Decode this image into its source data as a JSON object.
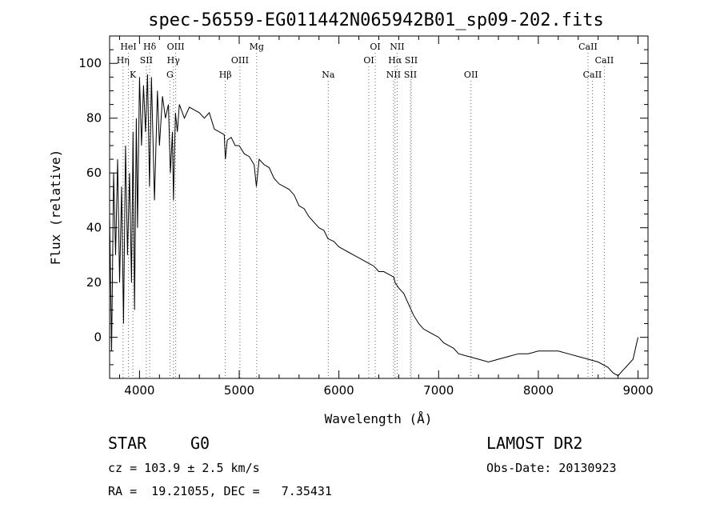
{
  "chart_data": {
    "type": "line",
    "title": "spec-56559-EG011442N065942B01_sp09-202.fits",
    "xlabel": "Wavelength (Å)",
    "ylabel": "Flux (relative)",
    "xlim": [
      3700,
      9100
    ],
    "ylim": [
      -15,
      110
    ],
    "xticks": [
      4000,
      5000,
      6000,
      7000,
      8000,
      9000
    ],
    "yticks": [
      0,
      20,
      40,
      60,
      80,
      100
    ],
    "grid": false,
    "series": [
      {
        "x": [
          3700,
          3720,
          3740,
          3760,
          3780,
          3800,
          3820,
          3840,
          3860,
          3880,
          3900,
          3920,
          3935,
          3950,
          3968,
          3980,
          4000,
          4020,
          4040,
          4060,
          4080,
          4100,
          4120,
          4150,
          4180,
          4200,
          4230,
          4260,
          4290,
          4310,
          4330,
          4340,
          4360,
          4380,
          4400,
          4450,
          4500,
          4550,
          4600,
          4650,
          4700,
          4750,
          4800,
          4850,
          4861,
          4880,
          4920,
          4960,
          5000,
          5050,
          5100,
          5150,
          5172,
          5200,
          5250,
          5300,
          5350,
          5400,
          5450,
          5500,
          5550,
          5600,
          5650,
          5700,
          5750,
          5800,
          5850,
          5890,
          5950,
          6000,
          6050,
          6100,
          6150,
          6200,
          6250,
          6300,
          6350,
          6400,
          6450,
          6500,
          6550,
          6563,
          6600,
          6650,
          6700,
          6750,
          6800,
          6850,
          6900,
          6950,
          7000,
          7050,
          7100,
          7150,
          7200,
          7300,
          7400,
          7500,
          7600,
          7700,
          7800,
          7900,
          8000,
          8100,
          8200,
          8300,
          8400,
          8500,
          8600,
          8700,
          8750,
          8800,
          8850,
          8900,
          8950,
          9000
        ],
        "values": [
          45,
          -5,
          60,
          30,
          65,
          20,
          55,
          5,
          70,
          30,
          60,
          20,
          75,
          10,
          80,
          40,
          95,
          70,
          92,
          75,
          96,
          55,
          95,
          50,
          90,
          70,
          88,
          80,
          85,
          60,
          75,
          50,
          82,
          75,
          85,
          80,
          84,
          83,
          82,
          80,
          82,
          76,
          75,
          74,
          65,
          72,
          73,
          70,
          70,
          67,
          66,
          63,
          55,
          65,
          63,
          62,
          58,
          56,
          55,
          54,
          52,
          48,
          47,
          44,
          42,
          40,
          39,
          36,
          35,
          33,
          32,
          31,
          30,
          29,
          28,
          27,
          26,
          24,
          24,
          23,
          22,
          20,
          18,
          16,
          12,
          8,
          5,
          3,
          2,
          1,
          0,
          -2,
          -3,
          -4,
          -6,
          -7,
          -8,
          -9,
          -8,
          -7,
          -6,
          -6,
          -5,
          -5,
          -5,
          -6,
          -7,
          -8,
          -9,
          -11,
          -13,
          -14,
          -12,
          -10,
          -8,
          0
        ]
      }
    ],
    "lines": [
      {
        "label": "HeI",
        "wl": 3889,
        "row": 0
      },
      {
        "label": "Hη",
        "wl": 3835,
        "row": 1
      },
      {
        "label": "K",
        "wl": 3934,
        "row": 2
      },
      {
        "label": "Hδ",
        "wl": 4102,
        "row": 0
      },
      {
        "label": "SII",
        "wl": 4068,
        "row": 1
      },
      {
        "label": "OIII",
        "wl": 4363,
        "row": 0
      },
      {
        "label": "Hγ",
        "wl": 4340,
        "row": 1
      },
      {
        "label": "G",
        "wl": 4305,
        "row": 2
      },
      {
        "label": "Hβ",
        "wl": 4861,
        "row": 2
      },
      {
        "label": "OIII",
        "wl": 5007,
        "row": 1
      },
      {
        "label": "Mg",
        "wl": 5175,
        "row": 0
      },
      {
        "label": "Na",
        "wl": 5893,
        "row": 2
      },
      {
        "label": "OI",
        "wl": 6364,
        "row": 0
      },
      {
        "label": "OI",
        "wl": 6300,
        "row": 1
      },
      {
        "label": "NII",
        "wl": 6584,
        "row": 0
      },
      {
        "label": "Hα",
        "wl": 6563,
        "row": 1
      },
      {
        "label": "SII",
        "wl": 6725,
        "row": 1
      },
      {
        "label": "NII",
        "wl": 6548,
        "row": 2
      },
      {
        "label": "SII",
        "wl": 6717,
        "row": 2
      },
      {
        "label": "OII",
        "wl": 7325,
        "row": 2
      },
      {
        "label": "CaII",
        "wl": 8498,
        "row": 0
      },
      {
        "label": "CaII",
        "wl": 8662,
        "row": 1
      },
      {
        "label": "CaII",
        "wl": 8542,
        "row": 2
      }
    ]
  },
  "info": {
    "object_class": "STAR",
    "subclass": "G0",
    "survey": "LAMOST DR2",
    "cz": "cz = 103.9 ± 2.5 km/s",
    "obs_date": "Obs-Date: 20130923",
    "coords": "RA =  19.21055, DEC =   7.35431"
  }
}
